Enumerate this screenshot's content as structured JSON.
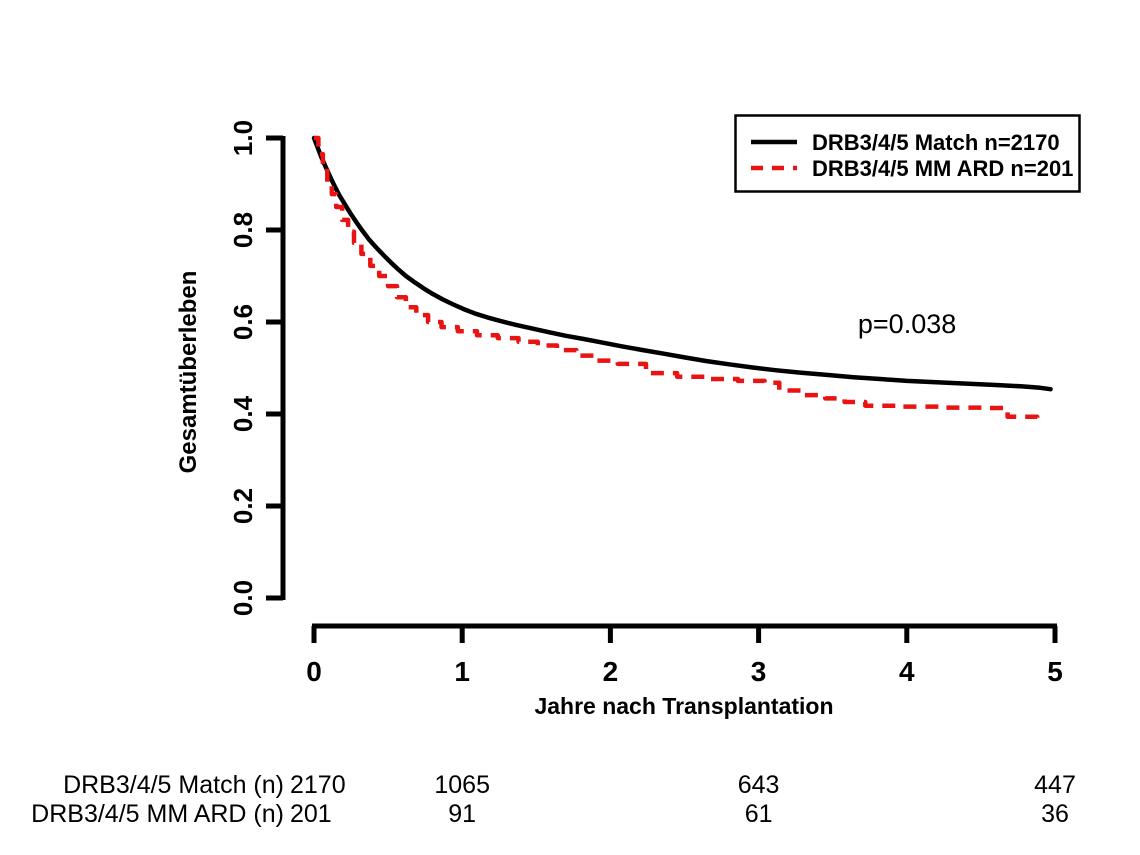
{
  "figure": {
    "background": "#ffffff",
    "axis_color": "#000000",
    "p_value_label": "p=0.038"
  },
  "chart_data": {
    "type": "line",
    "subtype": "kaplan-meier-survival",
    "title": "",
    "xlabel": "Jahre nach Transplantation",
    "ylabel": "Gesamtüberleben",
    "xlim": [
      0,
      5
    ],
    "ylim": [
      0.0,
      1.0
    ],
    "xticks": [
      0,
      1,
      2,
      3,
      4,
      5
    ],
    "ytick_labels": [
      "0.0",
      "0.2",
      "0.4",
      "0.6",
      "0.8",
      "1.0"
    ],
    "grid": false,
    "legend": {
      "position": "top-right",
      "border": true,
      "entries": [
        {
          "label": "DRB3/4/5 Match n=2170",
          "color": "#000000",
          "dash": "solid"
        },
        {
          "label": "DRB3/4/5 MM ARD n=201",
          "color": "#e81414",
          "dash": "dashed"
        }
      ]
    },
    "annotation": {
      "text": "p=0.038",
      "x": 3.67,
      "y": 0.576
    },
    "series": [
      {
        "name": "DRB3/4/5 Match n=2170",
        "color": "#000000",
        "line": "solid",
        "render": "linear",
        "points": [
          [
            0,
            1.0
          ],
          [
            0.02,
            0.983
          ],
          [
            0.05,
            0.958
          ],
          [
            0.08,
            0.936
          ],
          [
            0.11,
            0.915
          ],
          [
            0.14,
            0.895
          ],
          [
            0.17,
            0.876
          ],
          [
            0.21,
            0.855
          ],
          [
            0.25,
            0.834
          ],
          [
            0.29,
            0.815
          ],
          [
            0.33,
            0.797
          ],
          [
            0.37,
            0.78
          ],
          [
            0.42,
            0.762
          ],
          [
            0.47,
            0.745
          ],
          [
            0.52,
            0.729
          ],
          [
            0.57,
            0.714
          ],
          [
            0.62,
            0.7
          ],
          [
            0.68,
            0.686
          ],
          [
            0.74,
            0.673
          ],
          [
            0.8,
            0.661
          ],
          [
            0.87,
            0.649
          ],
          [
            0.94,
            0.638
          ],
          [
            1.01,
            0.628
          ],
          [
            1.09,
            0.618
          ],
          [
            1.17,
            0.61
          ],
          [
            1.26,
            0.602
          ],
          [
            1.36,
            0.594
          ],
          [
            1.47,
            0.586
          ],
          [
            1.58,
            0.578
          ],
          [
            1.7,
            0.57
          ],
          [
            1.82,
            0.563
          ],
          [
            1.95,
            0.555
          ],
          [
            2.08,
            0.547
          ],
          [
            2.22,
            0.539
          ],
          [
            2.36,
            0.531
          ],
          [
            2.5,
            0.523
          ],
          [
            2.65,
            0.515
          ],
          [
            2.8,
            0.508
          ],
          [
            2.96,
            0.501
          ],
          [
            3.12,
            0.495
          ],
          [
            3.28,
            0.49
          ],
          [
            3.46,
            0.485
          ],
          [
            3.64,
            0.48
          ],
          [
            3.82,
            0.476
          ],
          [
            4.0,
            0.472
          ],
          [
            4.2,
            0.469
          ],
          [
            4.4,
            0.466
          ],
          [
            4.6,
            0.463
          ],
          [
            4.78,
            0.46
          ],
          [
            4.9,
            0.457
          ],
          [
            4.97,
            0.454
          ]
        ]
      },
      {
        "name": "DRB3/4/5 MM ARD n=201",
        "color": "#e81414",
        "line": "dashed",
        "render": "step",
        "points": [
          [
            0,
            1.0
          ],
          [
            0.03,
            0.965
          ],
          [
            0.06,
            0.935
          ],
          [
            0.09,
            0.905
          ],
          [
            0.12,
            0.878
          ],
          [
            0.15,
            0.85
          ],
          [
            0.19,
            0.822
          ],
          [
            0.23,
            0.796
          ],
          [
            0.27,
            0.772
          ],
          [
            0.32,
            0.748
          ],
          [
            0.38,
            0.722
          ],
          [
            0.44,
            0.7
          ],
          [
            0.5,
            0.678
          ],
          [
            0.56,
            0.654
          ],
          [
            0.62,
            0.632
          ],
          [
            0.69,
            0.615
          ],
          [
            0.77,
            0.6
          ],
          [
            0.86,
            0.589
          ],
          [
            0.97,
            0.58
          ],
          [
            1.1,
            0.571
          ],
          [
            1.24,
            0.565
          ],
          [
            1.38,
            0.557
          ],
          [
            1.51,
            0.549
          ],
          [
            1.64,
            0.539
          ],
          [
            1.77,
            0.527
          ],
          [
            1.91,
            0.516
          ],
          [
            2.05,
            0.509
          ],
          [
            2.24,
            0.489
          ],
          [
            2.45,
            0.481
          ],
          [
            2.66,
            0.476
          ],
          [
            2.86,
            0.472
          ],
          [
            3.04,
            0.468
          ],
          [
            3.14,
            0.451
          ],
          [
            3.29,
            0.441
          ],
          [
            3.45,
            0.434
          ],
          [
            3.58,
            0.426
          ],
          [
            3.72,
            0.418
          ],
          [
            3.95,
            0.416
          ],
          [
            4.25,
            0.414
          ],
          [
            4.55,
            0.413
          ],
          [
            4.68,
            0.394
          ],
          [
            4.88,
            0.392
          ]
        ]
      }
    ]
  },
  "risk_table": {
    "time_points": [
      0,
      1,
      3,
      5
    ],
    "rows": [
      {
        "label": "DRB3/4/5 Match (n)",
        "values": [
          "2170",
          "1065",
          "643",
          "447"
        ]
      },
      {
        "label": "DRB3/4/5 MM ARD (n)",
        "values": [
          "201",
          "91",
          "61",
          "36"
        ]
      }
    ]
  }
}
